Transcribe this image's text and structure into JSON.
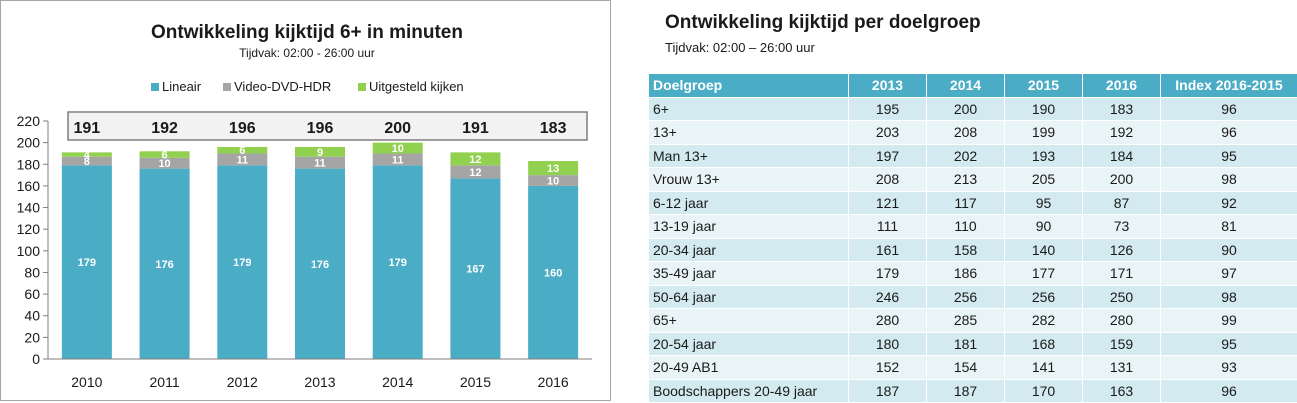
{
  "chart_data": {
    "type": "bar",
    "stacked": true,
    "title": "Ontwikkeling kijktijd 6+ in minuten",
    "subtitle": "Tijdvak: 02:00 - 26:00 uur",
    "categories": [
      "2010",
      "2011",
      "2012",
      "2013",
      "2014",
      "2015",
      "2016"
    ],
    "series": [
      {
        "name": "Lineair",
        "color": "#4bacc6",
        "values": [
          179,
          176,
          179,
          176,
          179,
          167,
          160
        ]
      },
      {
        "name": "Video-DVD-HDR",
        "color": "#a5a5a5",
        "values": [
          8,
          10,
          11,
          11,
          11,
          12,
          10
        ]
      },
      {
        "name": "Uitgesteld kijken",
        "color": "#92d050",
        "values": [
          4,
          6,
          6,
          9,
          10,
          12,
          13
        ]
      }
    ],
    "totals": [
      191,
      192,
      196,
      196,
      200,
      191,
      183
    ],
    "ylim": [
      0,
      220
    ],
    "yticks": [
      0,
      20,
      40,
      60,
      80,
      100,
      120,
      140,
      160,
      180,
      200,
      220
    ],
    "grid": false,
    "legend_position": "top"
  },
  "table": {
    "title": "Ontwikkeling kijktijd per doelgroep",
    "subtitle": "Tijdvak: 02:00 – 26:00 uur",
    "headers": [
      "Doelgroep",
      "2013",
      "2014",
      "2015",
      "2016",
      "Index 2016-2015"
    ],
    "rows": [
      [
        "6+",
        "195",
        "200",
        "190",
        "183",
        "96"
      ],
      [
        "13+",
        "203",
        "208",
        "199",
        "192",
        "96"
      ],
      [
        "Man 13+",
        "197",
        "202",
        "193",
        "184",
        "95"
      ],
      [
        "Vrouw 13+",
        "208",
        "213",
        "205",
        "200",
        "98"
      ],
      [
        "6-12 jaar",
        "121",
        "117",
        "95",
        "87",
        "92"
      ],
      [
        "13-19 jaar",
        "111",
        "110",
        "90",
        "73",
        "81"
      ],
      [
        "20-34 jaar",
        "161",
        "158",
        "140",
        "126",
        "90"
      ],
      [
        "35-49 jaar",
        "179",
        "186",
        "177",
        "171",
        "97"
      ],
      [
        "50-64 jaar",
        "246",
        "256",
        "256",
        "250",
        "98"
      ],
      [
        "65+",
        "280",
        "285",
        "282",
        "280",
        "99"
      ],
      [
        "20-54 jaar",
        "180",
        "181",
        "168",
        "159",
        "95"
      ],
      [
        "20-49 AB1",
        "152",
        "154",
        "141",
        "131",
        "93"
      ],
      [
        "Boodschappers 20-49 jaar",
        "187",
        "187",
        "170",
        "163",
        "96"
      ]
    ],
    "header_color": "#4bacc6"
  }
}
